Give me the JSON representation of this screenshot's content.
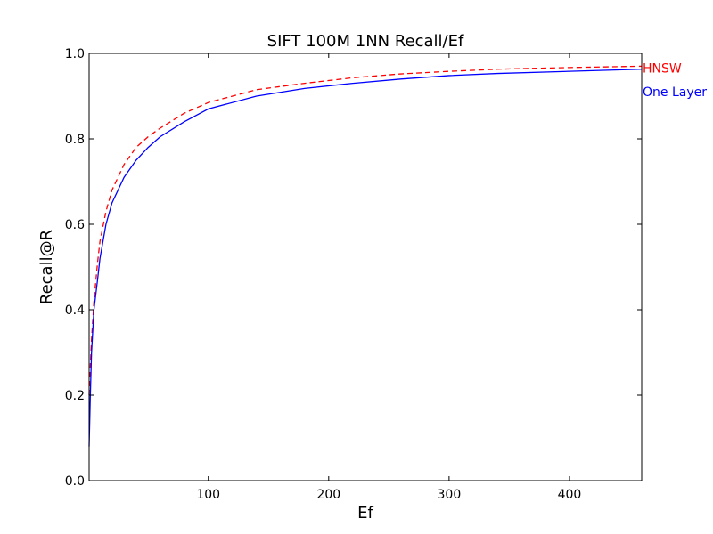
{
  "chart_data": {
    "type": "line",
    "title": "SIFT 100M 1NN Recall/Ef",
    "xlabel": "Ef",
    "ylabel": "Recall@R",
    "xlim": [
      1,
      460
    ],
    "ylim": [
      0.0,
      1.0
    ],
    "xticks": [
      100,
      200,
      300,
      400
    ],
    "yticks": [
      0.0,
      0.2,
      0.4,
      0.6,
      0.8,
      1.0
    ],
    "grid": false,
    "legend": "direct labels at right end of lines",
    "series": [
      {
        "name": "HNSW",
        "color": "#ff0000",
        "style": "dashed",
        "x": [
          1,
          2,
          3,
          5,
          8,
          10,
          15,
          20,
          25,
          30,
          40,
          50,
          60,
          80,
          100,
          140,
          180,
          220,
          260,
          300,
          340,
          400,
          460
        ],
        "y": [
          0.2,
          0.27,
          0.33,
          0.42,
          0.51,
          0.56,
          0.63,
          0.68,
          0.71,
          0.74,
          0.78,
          0.805,
          0.825,
          0.86,
          0.885,
          0.915,
          0.93,
          0.943,
          0.952,
          0.958,
          0.963,
          0.967,
          0.97
        ]
      },
      {
        "name": "One Layer",
        "color": "#0000ff",
        "style": "solid",
        "x": [
          1,
          2,
          3,
          5,
          8,
          10,
          15,
          20,
          25,
          30,
          40,
          50,
          60,
          80,
          100,
          140,
          180,
          220,
          260,
          300,
          340,
          400,
          460
        ],
        "y": [
          0.08,
          0.2,
          0.3,
          0.4,
          0.47,
          0.52,
          0.6,
          0.65,
          0.68,
          0.71,
          0.75,
          0.78,
          0.805,
          0.84,
          0.87,
          0.9,
          0.918,
          0.93,
          0.94,
          0.948,
          0.953,
          0.958,
          0.963
        ]
      }
    ]
  }
}
